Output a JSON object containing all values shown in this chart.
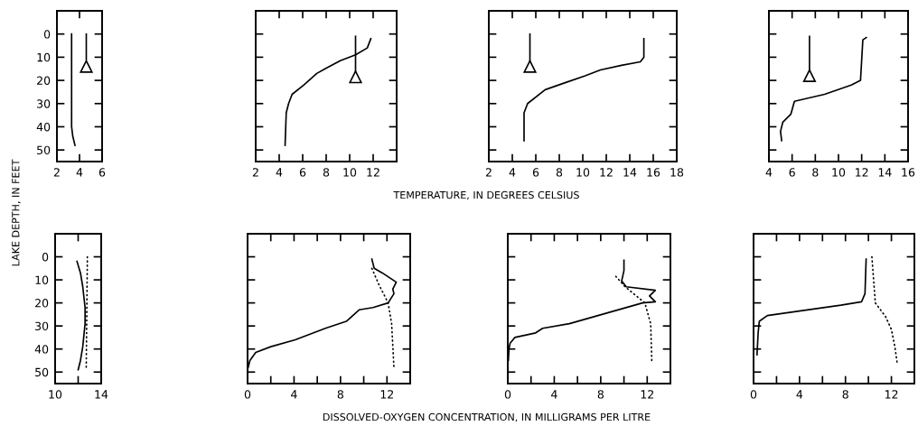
{
  "chart_data": [
    {
      "type": "line",
      "ylabel": "LAKE DEPTH, IN FEET",
      "xlim": [
        2,
        6
      ],
      "xticks": [
        2,
        4,
        6
      ],
      "ylim": [
        55,
        -10
      ],
      "yticks": [
        0,
        10,
        20,
        30,
        40,
        50
      ],
      "grid": false,
      "series": [
        {
          "color": "#000000",
          "line_style": "solid",
          "x": [
            3.3,
            3.3,
            3.4,
            3.6
          ],
          "values": [
            0,
            40,
            44,
            48
          ]
        },
        {
          "color": "#000000",
          "line_style": "solid",
          "x": [
            4.6,
            4.6
          ],
          "values": [
            0,
            11
          ]
        },
        {
          "type": "scatter",
          "marker": "triangle",
          "color": "#000000",
          "x": [
            4.6
          ],
          "values": [
            14
          ]
        }
      ]
    },
    {
      "type": "line",
      "xlim": [
        2,
        14
      ],
      "xticks": [
        2,
        4,
        6,
        8,
        10,
        12
      ],
      "ylim": [
        55,
        -10
      ],
      "yticks": [
        0,
        10,
        20,
        30,
        40,
        50
      ],
      "tick_labels": "x",
      "grid": false,
      "series": [
        {
          "color": "#000000",
          "line_style": "solid",
          "x": [
            11.8,
            11.5,
            10.5,
            9.2,
            7.9,
            7.2,
            6.1,
            5.1,
            4.8,
            4.6,
            4.5
          ],
          "values": [
            2,
            6,
            9,
            11.5,
            15,
            17,
            22,
            26,
            30,
            34,
            48
          ]
        },
        {
          "color": "#000000",
          "line_style": "solid",
          "x": [
            10.5,
            10.5
          ],
          "values": [
            1,
            16
          ]
        },
        {
          "type": "scatter",
          "marker": "triangle",
          "color": "#000000",
          "x": [
            10.5
          ],
          "values": [
            18.5
          ]
        }
      ]
    },
    {
      "type": "line",
      "xlabel": "TEMPERATURE, IN DEGREES CELSIUS",
      "xlim": [
        2,
        18
      ],
      "xticks": [
        2,
        4,
        6,
        8,
        10,
        12,
        14,
        16,
        18
      ],
      "ylim": [
        55,
        -10
      ],
      "yticks": [
        0,
        10,
        20,
        30,
        40,
        50
      ],
      "tick_labels": "x",
      "grid": false,
      "series": [
        {
          "color": "#000000",
          "line_style": "solid",
          "x": [
            15.2,
            15.2,
            14.9,
            13.3,
            11.5,
            10.2,
            8.5,
            6.8,
            5.3,
            5.0,
            5.0
          ],
          "values": [
            2,
            10,
            12,
            13.5,
            15.5,
            18,
            21,
            24,
            30,
            34,
            46
          ]
        },
        {
          "color": "#000000",
          "line_style": "solid",
          "x": [
            5.5,
            5.5
          ],
          "values": [
            0,
            12
          ]
        },
        {
          "type": "scatter",
          "marker": "triangle",
          "color": "#000000",
          "x": [
            5.5
          ],
          "values": [
            14
          ]
        }
      ]
    },
    {
      "type": "line",
      "xlim": [
        4,
        16
      ],
      "xticks": [
        4,
        6,
        8,
        10,
        12,
        14,
        16
      ],
      "ylim": [
        55,
        -10
      ],
      "yticks": [
        0,
        10,
        20,
        30,
        40,
        50
      ],
      "tick_labels": "x",
      "grid": false,
      "series": [
        {
          "color": "#000000",
          "line_style": "solid",
          "x": [
            12.4,
            12.1,
            11.9,
            11.1,
            8.8,
            6.2,
            5.9,
            5.2,
            5.0,
            5.1
          ],
          "values": [
            1.5,
            2.5,
            20,
            22,
            26,
            29,
            34.5,
            38,
            42,
            46
          ]
        },
        {
          "color": "#000000",
          "line_style": "solid",
          "x": [
            7.5,
            7.5
          ],
          "values": [
            1,
            16
          ]
        },
        {
          "type": "scatter",
          "marker": "triangle",
          "color": "#000000",
          "x": [
            7.5
          ],
          "values": [
            18
          ]
        }
      ]
    },
    {
      "type": "line",
      "xlim": [
        10,
        14
      ],
      "xticks": [
        10,
        {
          "value": 12,
          "label": null
        },
        14
      ],
      "ylim": [
        55,
        -10
      ],
      "yticks": [
        0,
        10,
        20,
        30,
        40,
        50
      ],
      "grid": false,
      "series": [
        {
          "color": "#000000",
          "line_style": "solid",
          "x": [
            11.9,
            12.2,
            12.4,
            12.6,
            12.6,
            12.4,
            12.2,
            12.0
          ],
          "values": [
            2,
            7,
            13,
            22,
            29,
            39,
            45,
            49
          ]
        },
        {
          "color": "#000000",
          "line_style": "dotted",
          "x": [
            12.8,
            12.7
          ],
          "values": [
            0,
            49
          ]
        }
      ]
    },
    {
      "type": "line",
      "xlim": [
        0,
        14
      ],
      "xticks": [
        0,
        {
          "value": 2,
          "label": null
        },
        4,
        {
          "value": 6,
          "label": null
        },
        8,
        {
          "value": 10,
          "label": null
        },
        12
      ],
      "ylim": [
        55,
        -10
      ],
      "yticks": [
        0,
        10,
        20,
        30,
        40,
        50
      ],
      "tick_labels": "x",
      "grid": false,
      "series": [
        {
          "color": "#000000",
          "line_style": "solid",
          "x": [
            10.7,
            10.9,
            11.6,
            12.8,
            12.5,
            12.6,
            12.1,
            10.8,
            9.6,
            8.5,
            6.7,
            4.1,
            2.0,
            0.7,
            0.2,
            0.05
          ],
          "values": [
            1,
            5,
            7,
            11,
            14,
            16,
            20,
            22,
            23,
            28,
            31,
            36,
            39,
            41.5,
            45,
            48
          ]
        },
        {
          "color": "#000000",
          "line_style": "dotted",
          "x": [
            10.7,
            11.3,
            12.1,
            12.4,
            12.6
          ],
          "values": [
            5,
            12,
            20,
            29,
            48
          ]
        }
      ]
    },
    {
      "type": "line",
      "xlabel": "DISSOLVED-OXYGEN CONCENTRATION, IN MILLIGRAMS PER LITRE",
      "xlim": [
        0,
        14
      ],
      "xticks": [
        0,
        {
          "value": 2,
          "label": null
        },
        4,
        {
          "value": 6,
          "label": null
        },
        8,
        {
          "value": 10,
          "label": null
        },
        12
      ],
      "ylim": [
        55,
        -10
      ],
      "yticks": [
        0,
        10,
        20,
        30,
        40,
        50
      ],
      "tick_labels": "x",
      "grid": false,
      "series": [
        {
          "color": "#000000",
          "line_style": "solid",
          "x": [
            10.0,
            10.0,
            9.8,
            10.2,
            12.7,
            12.2,
            12.7,
            11.6,
            5.3,
            3.0,
            2.4,
            0.6,
            0.2,
            0.1,
            0.05
          ],
          "values": [
            1.5,
            6,
            10.5,
            13,
            14.5,
            17,
            19.5,
            20,
            29,
            31,
            33,
            35,
            37.5,
            40,
            45
          ]
        },
        {
          "color": "#000000",
          "line_style": "dotted",
          "x": [
            9.3,
            10.1,
            11.8,
            12.3,
            12.4
          ],
          "values": [
            8.5,
            13,
            20,
            29,
            46
          ]
        }
      ]
    },
    {
      "type": "line",
      "xlim": [
        0,
        14
      ],
      "xticks": [
        0,
        {
          "value": 2,
          "label": null
        },
        4,
        {
          "value": 6,
          "label": null
        },
        8,
        {
          "value": 10,
          "label": null
        },
        12
      ],
      "ylim": [
        55,
        -10
      ],
      "yticks": [
        0,
        10,
        20,
        30,
        40,
        50
      ],
      "tick_labels": "x",
      "grid": false,
      "series": [
        {
          "color": "#000000",
          "line_style": "solid",
          "x": [
            9.8,
            9.7,
            9.4,
            7.6,
            1.2,
            0.5,
            0.4,
            0.3
          ],
          "values": [
            1,
            16,
            19.5,
            21,
            25.5,
            28,
            33,
            42.5
          ]
        },
        {
          "color": "#000000",
          "line_style": "dotted",
          "x": [
            10.3,
            10.6,
            11.5,
            12.0,
            12.3,
            12.5
          ],
          "values": [
            0,
            20,
            26,
            31.5,
            39,
            46
          ]
        }
      ]
    }
  ]
}
